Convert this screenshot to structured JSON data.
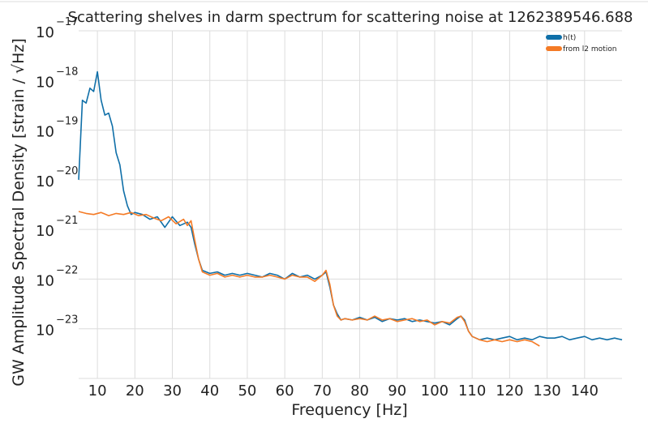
{
  "chart_data": {
    "type": "line",
    "title": "Scattering shelves in darm spectrum for scattering noise at 1262389546.688",
    "xlabel": "Frequency [Hz]",
    "ylabel": "GW Amplitude Spectral Density [strain / √Hz]",
    "xlim": [
      5,
      150
    ],
    "ylim": [
      1e-24,
      1e-17
    ],
    "yscale": "log",
    "grid": true,
    "legend_position": "top-right",
    "x_ticks": [
      10,
      20,
      30,
      40,
      50,
      60,
      70,
      80,
      90,
      100,
      110,
      120,
      130,
      140
    ],
    "x_tick_labels": [
      "10",
      "20",
      "30",
      "40",
      "50",
      "60",
      "70",
      "80",
      "90",
      "100",
      "110",
      "120",
      "130",
      "140"
    ],
    "y_ticks": [
      {
        "value": 1e-23,
        "base": "10",
        "exp": "−23"
      },
      {
        "value": 1e-22,
        "base": "10",
        "exp": "−22"
      },
      {
        "value": 1e-21,
        "base": "10",
        "exp": "−21"
      },
      {
        "value": 1e-20,
        "base": "10",
        "exp": "−20"
      },
      {
        "value": 1e-19,
        "base": "10",
        "exp": "−19"
      },
      {
        "value": 1e-18,
        "base": "10",
        "exp": "−18"
      },
      {
        "value": 1e-17,
        "base": "10",
        "exp": "−17"
      }
    ],
    "series": [
      {
        "name": "h(t)",
        "color": "#0f6fa8",
        "x": [
          5,
          6,
          7,
          8,
          9,
          10,
          11,
          12,
          13,
          14,
          15,
          16,
          17,
          18,
          19,
          20,
          22,
          24,
          26,
          28,
          30,
          32,
          34,
          35,
          36,
          37,
          38,
          40,
          42,
          44,
          46,
          48,
          50,
          52,
          54,
          56,
          58,
          60,
          62,
          64,
          66,
          68,
          70,
          71,
          72,
          73,
          74,
          75,
          76,
          78,
          80,
          82,
          84,
          86,
          88,
          90,
          92,
          94,
          96,
          98,
          100,
          102,
          104,
          106,
          107,
          108,
          109,
          110,
          112,
          114,
          116,
          118,
          120,
          122,
          124,
          126,
          128,
          130,
          132,
          134,
          136,
          138,
          140,
          142,
          144,
          146,
          148,
          150
        ],
        "y": [
          1e-20,
          4e-19,
          3.5e-19,
          7e-19,
          6e-19,
          1.5e-18,
          4e-19,
          2e-19,
          2.2e-19,
          1.2e-19,
          3.5e-20,
          2e-20,
          6e-21,
          3e-21,
          2e-21,
          2.2e-21,
          2e-21,
          1.6e-21,
          1.8e-21,
          1.1e-21,
          1.8e-21,
          1.2e-21,
          1.4e-21,
          1.1e-21,
          5e-22,
          2.5e-22,
          1.5e-22,
          1.3e-22,
          1.4e-22,
          1.2e-22,
          1.3e-22,
          1.2e-22,
          1.3e-22,
          1.2e-22,
          1.1e-22,
          1.3e-22,
          1.2e-22,
          1e-22,
          1.3e-22,
          1.1e-22,
          1.2e-22,
          1e-22,
          1.2e-22,
          1.4e-22,
          7e-23,
          3e-23,
          2e-23,
          1.5e-23,
          1.6e-23,
          1.5e-23,
          1.7e-23,
          1.5e-23,
          1.7e-23,
          1.4e-23,
          1.6e-23,
          1.5e-23,
          1.6e-23,
          1.4e-23,
          1.5e-23,
          1.4e-23,
          1.3e-23,
          1.4e-23,
          1.2e-23,
          1.6e-23,
          1.8e-23,
          1.5e-23,
          9e-24,
          7e-24,
          6e-24,
          6.5e-24,
          6e-24,
          6.5e-24,
          7e-24,
          6e-24,
          6.5e-24,
          6e-24,
          7e-24,
          6.5e-24,
          6.5e-24,
          7e-24,
          6e-24,
          6.5e-24,
          7e-24,
          6e-24,
          6.5e-24,
          6e-24,
          6.5e-24,
          6e-24
        ]
      },
      {
        "name": "from l2 motion",
        "color": "#f47a25",
        "x": [
          5,
          7,
          9,
          11,
          13,
          15,
          17,
          19,
          21,
          23,
          25,
          27,
          29,
          31,
          33,
          34,
          35,
          36,
          37,
          38,
          40,
          42,
          44,
          46,
          48,
          50,
          52,
          54,
          56,
          58,
          60,
          62,
          64,
          66,
          68,
          70,
          71,
          72,
          73,
          74,
          75,
          76,
          78,
          80,
          82,
          84,
          86,
          88,
          90,
          92,
          94,
          96,
          98,
          100,
          102,
          104,
          106,
          107,
          108,
          109,
          110,
          112,
          114,
          116,
          118,
          120,
          122,
          124,
          126,
          128
        ],
        "y": [
          2.3e-21,
          2.1e-21,
          2e-21,
          2.2e-21,
          1.9e-21,
          2.1e-21,
          2e-21,
          2.2e-21,
          1.9e-21,
          2e-21,
          1.7e-21,
          1.5e-21,
          1.8e-21,
          1.3e-21,
          1.6e-21,
          1.2e-21,
          1.5e-21,
          6e-22,
          2.5e-22,
          1.4e-22,
          1.2e-22,
          1.3e-22,
          1.1e-22,
          1.2e-22,
          1.1e-22,
          1.2e-22,
          1.1e-22,
          1.1e-22,
          1.2e-22,
          1.1e-22,
          1e-22,
          1.2e-22,
          1.1e-22,
          1.1e-22,
          9e-23,
          1.2e-22,
          1.5e-22,
          8e-23,
          3e-23,
          1.8e-23,
          1.5e-23,
          1.6e-23,
          1.5e-23,
          1.6e-23,
          1.5e-23,
          1.8e-23,
          1.5e-23,
          1.6e-23,
          1.4e-23,
          1.5e-23,
          1.6e-23,
          1.4e-23,
          1.5e-23,
          1.2e-23,
          1.4e-23,
          1.3e-23,
          1.7e-23,
          1.8e-23,
          1.4e-23,
          9e-24,
          7e-24,
          6e-24,
          5.5e-24,
          6e-24,
          5.5e-24,
          6e-24,
          5.5e-24,
          6e-24,
          5.5e-24,
          4.5e-24
        ]
      }
    ]
  }
}
